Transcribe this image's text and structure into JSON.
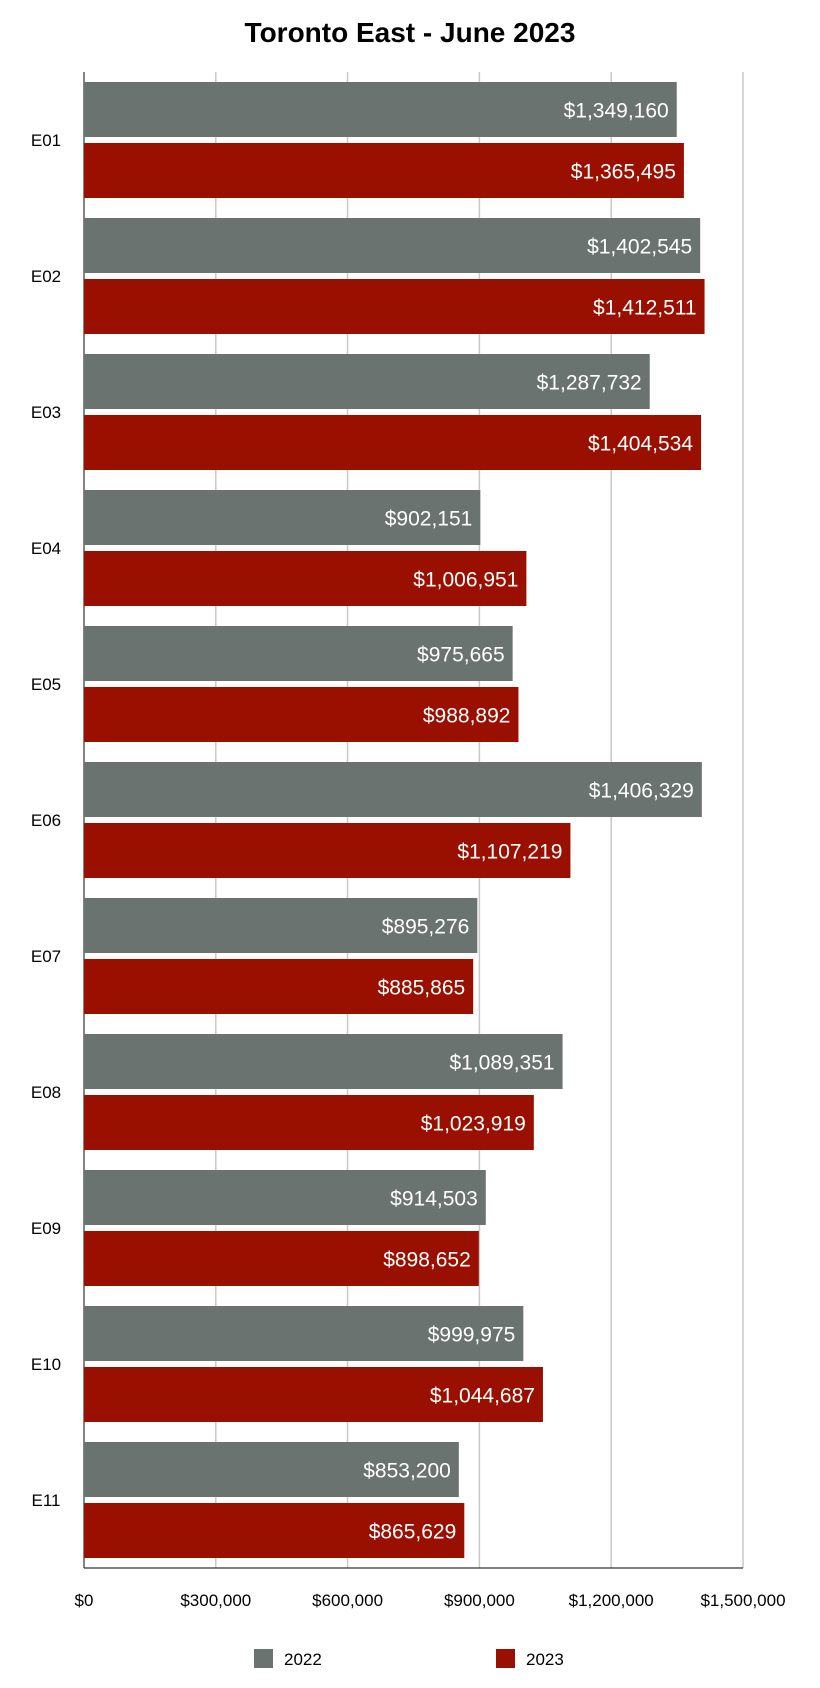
{
  "chart_data": {
    "type": "bar",
    "orientation": "horizontal",
    "title": "Toronto East - June 2023",
    "xlabel": "",
    "ylabel": "",
    "xlim": [
      0,
      1500000
    ],
    "x_ticks": [
      0,
      300000,
      600000,
      900000,
      1200000,
      1500000
    ],
    "x_tick_labels": [
      "$0",
      "$300,000",
      "$600,000",
      "$900,000",
      "$1,200,000",
      "$1,500,000"
    ],
    "grid": "vertical",
    "legend_position": "bottom",
    "categories": [
      "E01",
      "E02",
      "E03",
      "E04",
      "E05",
      "E06",
      "E07",
      "E08",
      "E09",
      "E10",
      "E11"
    ],
    "series": [
      {
        "name": "2022",
        "color": "#6b7370",
        "values": [
          1349160,
          1402545,
          1287732,
          902151,
          975665,
          1406329,
          895276,
          1089351,
          914503,
          999975,
          853200
        ],
        "labels": [
          "$1,349,160",
          "$1,402,545",
          "$1,287,732",
          "$902,151",
          "$975,665",
          "$1,406,329",
          "$895,276",
          "$1,089,351",
          "$914,503",
          "$999,975",
          "$853,200"
        ]
      },
      {
        "name": "2023",
        "color": "#9a1000",
        "values": [
          1365495,
          1412511,
          1404534,
          1006951,
          988892,
          1107219,
          885865,
          1023919,
          898652,
          1044687,
          865629
        ],
        "labels": [
          "$1,365,495",
          "$1,412,511",
          "$1,404,534",
          "$1,006,951",
          "$988,892",
          "$1,107,219",
          "$885,865",
          "$1,023,919",
          "$898,652",
          "$1,044,687",
          "$865,629"
        ]
      }
    ]
  }
}
